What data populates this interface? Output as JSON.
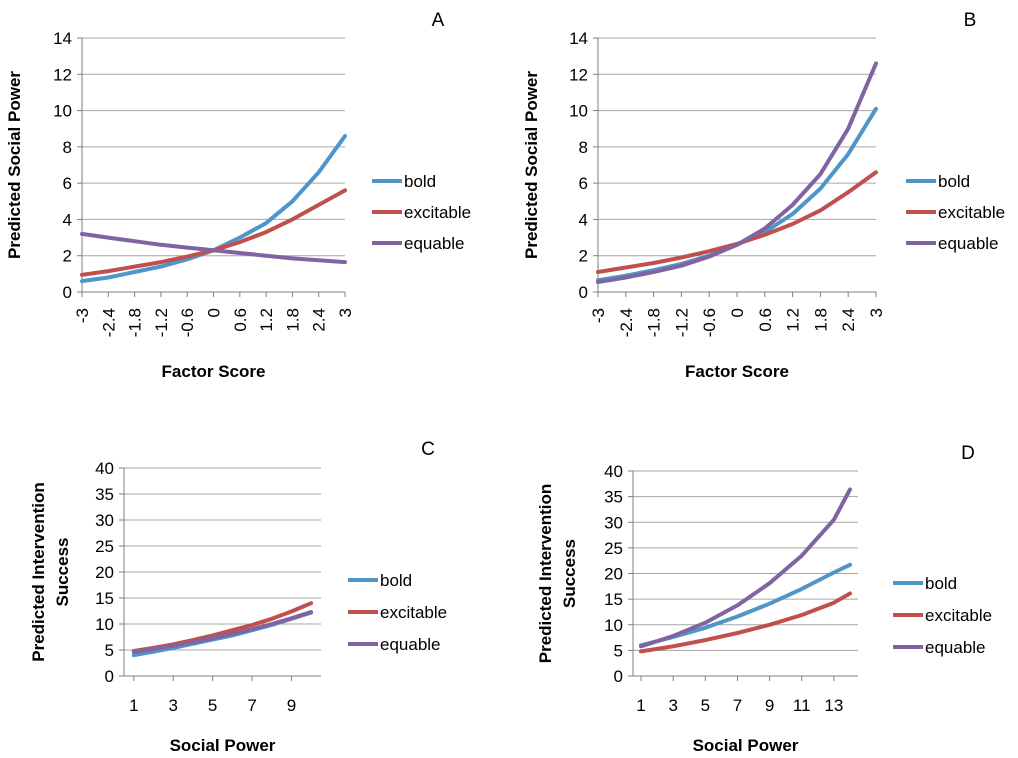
{
  "colors": {
    "bold": "#4f95c8",
    "excitable": "#c0504d",
    "equable": "#8064a2",
    "grid": "#a6a6a6",
    "axis": "#7f7f7f",
    "text": "#000000"
  },
  "chart_data": [
    {
      "panel": "A",
      "type": "line",
      "xlabel": "Factor Score",
      "ylabel": "Predicted Social Power",
      "ylim": [
        0,
        14
      ],
      "yticks": [
        "0",
        "2",
        "4",
        "6",
        "8",
        "10",
        "12",
        "14"
      ],
      "xlim": [
        -3,
        3
      ],
      "xticks": [
        "-3",
        "-2.4",
        "-1.8",
        "-1.2",
        "-0.6",
        "0",
        "0.6",
        "1.2",
        "1.8",
        "2.4",
        "3"
      ],
      "legend": "right",
      "grid": true,
      "series": [
        {
          "name": "bold",
          "x": [
            -3,
            -2.4,
            -1.8,
            -1.2,
            -0.6,
            0,
            0.6,
            1.2,
            1.8,
            2.4,
            3
          ],
          "y": [
            0.6,
            0.8,
            1.1,
            1.4,
            1.8,
            2.3,
            3.0,
            3.8,
            5.0,
            6.6,
            8.6
          ]
        },
        {
          "name": "excitable",
          "x": [
            -3,
            -2.4,
            -1.8,
            -1.2,
            -0.6,
            0,
            0.6,
            1.2,
            1.8,
            2.4,
            3
          ],
          "y": [
            0.95,
            1.15,
            1.4,
            1.65,
            1.95,
            2.3,
            2.75,
            3.3,
            4.0,
            4.8,
            5.6
          ]
        },
        {
          "name": "equable",
          "x": [
            -3,
            -2.4,
            -1.8,
            -1.2,
            -0.6,
            0,
            0.6,
            1.2,
            1.8,
            2.4,
            3
          ],
          "y": [
            3.2,
            3.0,
            2.8,
            2.6,
            2.45,
            2.3,
            2.15,
            2.0,
            1.85,
            1.75,
            1.65
          ]
        }
      ]
    },
    {
      "panel": "B",
      "type": "line",
      "xlabel": "Factor Score",
      "ylabel": "Predicted Social Power",
      "ylim": [
        0,
        14
      ],
      "yticks": [
        "0",
        "2",
        "4",
        "6",
        "8",
        "10",
        "12",
        "14"
      ],
      "xlim": [
        -3,
        3
      ],
      "xticks": [
        "-3",
        "-2.4",
        "-1.8",
        "-1.2",
        "-0.6",
        "0",
        "0.6",
        "1.2",
        "1.8",
        "2.4",
        "3"
      ],
      "legend": "right",
      "grid": true,
      "series": [
        {
          "name": "bold",
          "x": [
            -3,
            -2.4,
            -1.8,
            -1.2,
            -0.6,
            0,
            0.6,
            1.2,
            1.8,
            2.4,
            3
          ],
          "y": [
            0.65,
            0.9,
            1.2,
            1.55,
            2.0,
            2.6,
            3.3,
            4.3,
            5.7,
            7.6,
            10.1
          ]
        },
        {
          "name": "excitable",
          "x": [
            -3,
            -2.4,
            -1.8,
            -1.2,
            -0.6,
            0,
            0.6,
            1.2,
            1.8,
            2.4,
            3
          ],
          "y": [
            1.1,
            1.35,
            1.6,
            1.9,
            2.25,
            2.65,
            3.15,
            3.75,
            4.5,
            5.5,
            6.6
          ]
        },
        {
          "name": "equable",
          "x": [
            -3,
            -2.4,
            -1.8,
            -1.2,
            -0.6,
            0,
            0.6,
            1.2,
            1.8,
            2.4,
            3
          ],
          "y": [
            0.55,
            0.8,
            1.1,
            1.45,
            1.95,
            2.6,
            3.5,
            4.8,
            6.5,
            9.0,
            12.6
          ]
        }
      ]
    },
    {
      "panel": "C",
      "type": "line",
      "xlabel": "Social Power",
      "ylabel": "Predicted Intervention Success",
      "ylim": [
        0,
        40
      ],
      "yticks": [
        "0",
        "5",
        "10",
        "15",
        "20",
        "25",
        "30",
        "35",
        "40"
      ],
      "xlim": [
        0.5,
        10.5
      ],
      "xticks": [
        "1",
        "3",
        "5",
        "7",
        "9"
      ],
      "legend": "right",
      "grid": true,
      "series": [
        {
          "name": "bold",
          "x": [
            1,
            2,
            3,
            4,
            5,
            6,
            7,
            8,
            9,
            10
          ],
          "y": [
            4.0,
            4.7,
            5.4,
            6.2,
            7.0,
            7.8,
            8.8,
            9.8,
            11.0,
            12.2
          ]
        },
        {
          "name": "excitable",
          "x": [
            1,
            2,
            3,
            4,
            5,
            6,
            7,
            8,
            9,
            10
          ],
          "y": [
            4.8,
            5.4,
            6.1,
            6.9,
            7.8,
            8.8,
            9.8,
            11.0,
            12.4,
            14.0
          ]
        },
        {
          "name": "equable",
          "x": [
            1,
            2,
            3,
            4,
            5,
            6,
            7,
            8,
            9,
            10
          ],
          "y": [
            4.6,
            5.2,
            5.8,
            6.5,
            7.3,
            8.1,
            9.0,
            10.0,
            11.1,
            12.3
          ]
        }
      ]
    },
    {
      "panel": "D",
      "type": "line",
      "xlabel": "Social Power",
      "ylabel": "Predicted Intervention Success",
      "ylim": [
        0,
        40
      ],
      "yticks": [
        "0",
        "5",
        "10",
        "15",
        "20",
        "25",
        "30",
        "35",
        "40"
      ],
      "xlim": [
        0.5,
        14.5
      ],
      "xticks": [
        "1",
        "3",
        "5",
        "7",
        "9",
        "11",
        "13"
      ],
      "legend": "right",
      "grid": true,
      "series": [
        {
          "name": "bold",
          "x": [
            1,
            3,
            5,
            7,
            9,
            11,
            13,
            14
          ],
          "y": [
            6.0,
            7.6,
            9.4,
            11.6,
            14.1,
            17.0,
            20.2,
            21.7
          ]
        },
        {
          "name": "excitable",
          "x": [
            1,
            3,
            5,
            7,
            9,
            11,
            13,
            14
          ],
          "y": [
            4.8,
            5.8,
            7.0,
            8.4,
            10.0,
            11.9,
            14.3,
            16.1
          ]
        },
        {
          "name": "equable",
          "x": [
            1,
            3,
            5,
            7,
            9,
            11,
            13,
            14
          ],
          "y": [
            5.8,
            7.8,
            10.4,
            13.8,
            18.1,
            23.5,
            30.5,
            36.4
          ]
        }
      ]
    }
  ]
}
